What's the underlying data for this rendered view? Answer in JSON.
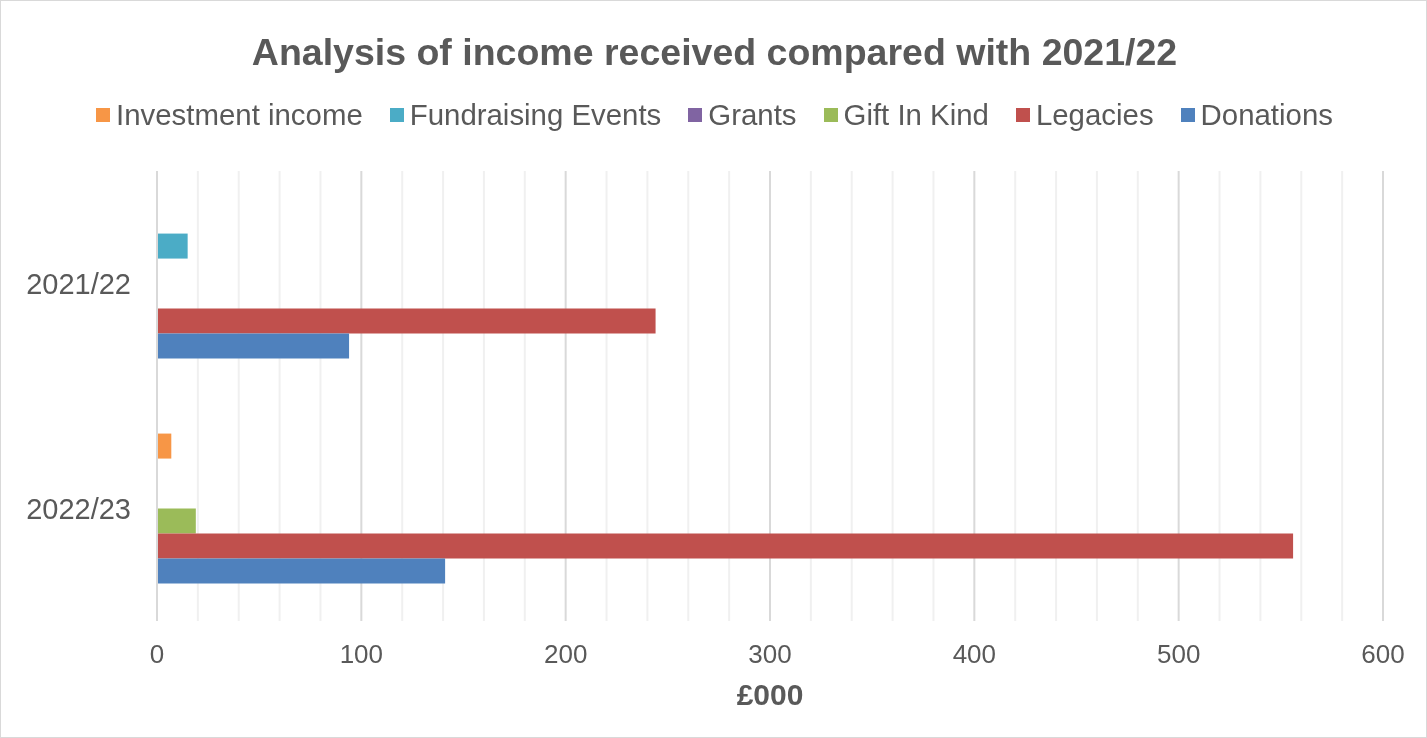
{
  "chart_data": {
    "type": "bar",
    "orientation": "horizontal",
    "title": "Analysis of income received compared with 2021/22",
    "xlabel": "£000",
    "categories": [
      "2021/22",
      "2022/23"
    ],
    "series": [
      {
        "name": "Investment income",
        "color": "#f79646",
        "values": [
          null,
          7
        ]
      },
      {
        "name": "Fundraising Events",
        "color": "#4bacc6",
        "values": [
          15,
          null
        ]
      },
      {
        "name": "Grants",
        "color": "#8064a2",
        "values": [
          null,
          null
        ]
      },
      {
        "name": "Gift In Kind",
        "color": "#9bbb59",
        "values": [
          null,
          19
        ]
      },
      {
        "name": "Legacies",
        "color": "#c0504d",
        "values": [
          244,
          556
        ]
      },
      {
        "name": "Donations",
        "color": "#4f81bd",
        "values": [
          94,
          141
        ]
      }
    ],
    "xlim": [
      0,
      600
    ],
    "xticks": [
      0,
      {
        "value": 20,
        "label": null
      },
      {
        "value": 40,
        "label": null
      },
      {
        "value": 60,
        "label": null
      },
      {
        "value": 80,
        "label": null
      },
      100,
      {
        "value": 120,
        "label": null
      },
      {
        "value": 140,
        "label": null
      },
      {
        "value": 160,
        "label": null
      },
      {
        "value": 180,
        "label": null
      },
      200,
      {
        "value": 220,
        "label": null
      },
      {
        "value": 240,
        "label": null
      },
      {
        "value": 260,
        "label": null
      },
      {
        "value": 280,
        "label": null
      },
      300,
      {
        "value": 320,
        "label": null
      },
      {
        "value": 340,
        "label": null
      },
      {
        "value": 360,
        "label": null
      },
      {
        "value": 380,
        "label": null
      },
      400,
      {
        "value": 420,
        "label": null
      },
      {
        "value": 440,
        "label": null
      },
      {
        "value": 460,
        "label": null
      },
      {
        "value": 480,
        "label": null
      },
      500,
      {
        "value": 520,
        "label": null
      },
      {
        "value": 540,
        "label": null
      },
      {
        "value": 560,
        "label": null
      },
      {
        "value": 580,
        "label": null
      },
      600
    ],
    "grid": "x",
    "legend": "top"
  }
}
